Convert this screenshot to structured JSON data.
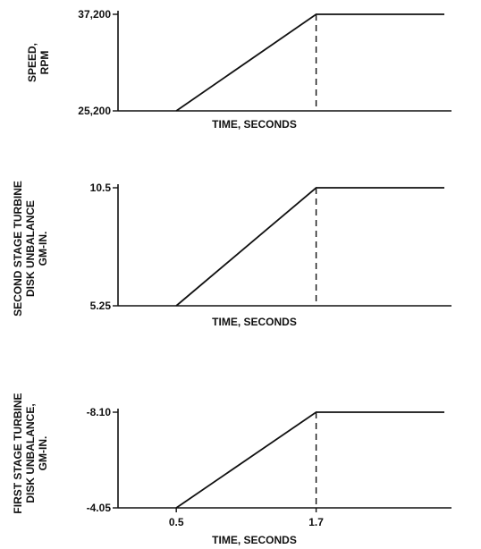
{
  "chart_data": [
    {
      "type": "line",
      "ylabel_lines": [
        "SPEED,",
        "RPM"
      ],
      "xlabel": "TIME, SECONDS",
      "y_ticks": [
        {
          "value": 25200,
          "label": "25,200"
        },
        {
          "value": 37200,
          "label": "37,200"
        }
      ],
      "ylim": [
        25200,
        37200
      ],
      "x_ticks": [],
      "series": [
        {
          "x": [
            0.5,
            1.7,
            2.8
          ],
          "y": [
            25200,
            37200,
            37200
          ]
        }
      ],
      "dashed_x": 1.7
    },
    {
      "type": "line",
      "ylabel_lines": [
        "SECOND STAGE TURBINE",
        "DISK UNBALANCE",
        "GM-IN."
      ],
      "xlabel": "TIME, SECONDS",
      "y_ticks": [
        {
          "value": 5.25,
          "label": "5.25"
        },
        {
          "value": 10.5,
          "label": "10.5"
        }
      ],
      "ylim": [
        5.25,
        10.5
      ],
      "x_ticks": [],
      "series": [
        {
          "x": [
            0.5,
            1.7,
            2.8
          ],
          "y": [
            5.25,
            10.5,
            10.5
          ]
        }
      ],
      "dashed_x": 1.7
    },
    {
      "type": "line",
      "ylabel_lines": [
        "FIRST STAGE TURBINE",
        "DISK UNBALANCE,",
        "GM-IN."
      ],
      "xlabel": "TIME, SECONDS",
      "y_ticks": [
        {
          "value": -4.05,
          "label": "-4.05"
        },
        {
          "value": -8.1,
          "label": "-8.10"
        }
      ],
      "ylim": [
        -4.05,
        -8.1
      ],
      "x_ticks": [
        {
          "value": 0.5,
          "label": "0.5"
        },
        {
          "value": 1.7,
          "label": "1.7"
        }
      ],
      "series": [
        {
          "x": [
            0.5,
            1.7,
            2.8
          ],
          "y": [
            -4.05,
            -8.1,
            -8.1
          ]
        }
      ],
      "dashed_x": 1.7
    }
  ]
}
